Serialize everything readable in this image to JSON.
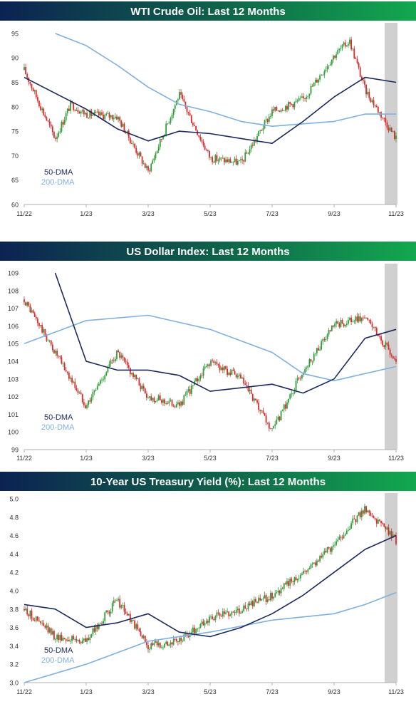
{
  "colors": {
    "header_left": "#0c2352",
    "header_mid": "#0f5f4a",
    "header_right": "#12a84f",
    "up_candle": "#2f9e3a",
    "down_candle": "#d92b2b",
    "dma50": "#1a2a5c",
    "dma200": "#7fb0e0",
    "highlight": "#d0d0d0"
  },
  "chart_data": [
    {
      "type": "candlestick",
      "title": "WTI Crude Oil: Last 12 Months",
      "x_ticks": [
        "11/22",
        "1/23",
        "3/23",
        "5/23",
        "7/23",
        "9/23",
        "11/23"
      ],
      "ylim": [
        60,
        96
      ],
      "y_ticks": [
        "60",
        "65",
        "70",
        "75",
        "80",
        "85",
        "90",
        "95"
      ],
      "legend": [
        "50-DMA",
        "200-DMA"
      ],
      "legend_position": "bottom-left",
      "highlight_last_days": 6,
      "close": [
        {
          "x": "11/22",
          "y": 87.5
        },
        {
          "x": "12/22",
          "y": 73.5
        },
        {
          "x": "12/22b",
          "y": 80.5
        },
        {
          "x": "1/23",
          "y": 78.5
        },
        {
          "x": "2/23",
          "y": 78.0
        },
        {
          "x": "3/23",
          "y": 66.7
        },
        {
          "x": "4/23",
          "y": 82.5
        },
        {
          "x": "5/23",
          "y": 69.5
        },
        {
          "x": "6/23",
          "y": 68.5
        },
        {
          "x": "7/23",
          "y": 79.0
        },
        {
          "x": "8/23",
          "y": 81.5
        },
        {
          "x": "9/23",
          "y": 90.5
        },
        {
          "x": "9/23b",
          "y": 93.5
        },
        {
          "x": "10/23",
          "y": 83.5
        },
        {
          "x": "11/23",
          "y": 73.5
        }
      ],
      "dma50": [
        {
          "x": "11/22",
          "y": 86.0
        },
        {
          "x": "1/23",
          "y": 79.5
        },
        {
          "x": "2/23",
          "y": 75.5
        },
        {
          "x": "3/23",
          "y": 73.0
        },
        {
          "x": "4/23",
          "y": 75.0
        },
        {
          "x": "5/23",
          "y": 74.5
        },
        {
          "x": "6/23",
          "y": 73.5
        },
        {
          "x": "7/23",
          "y": 72.5
        },
        {
          "x": "8/23",
          "y": 77.0
        },
        {
          "x": "9/23",
          "y": 82.0
        },
        {
          "x": "10/23",
          "y": 86.0
        },
        {
          "x": "11/23",
          "y": 85.0
        }
      ],
      "dma200": [
        {
          "x": "12/22",
          "y": 95.0
        },
        {
          "x": "1/23",
          "y": 92.5
        },
        {
          "x": "2/23",
          "y": 88.5
        },
        {
          "x": "3/23",
          "y": 84.0
        },
        {
          "x": "4/23",
          "y": 80.5
        },
        {
          "x": "5/23",
          "y": 79.0
        },
        {
          "x": "6/23",
          "y": 77.0
        },
        {
          "x": "7/23",
          "y": 76.0
        },
        {
          "x": "8/23",
          "y": 76.5
        },
        {
          "x": "9/23",
          "y": 77.0
        },
        {
          "x": "10/23",
          "y": 78.5
        },
        {
          "x": "11/23",
          "y": 78.5
        }
      ]
    },
    {
      "type": "candlestick",
      "title": "US Dollar Index: Last 12 Months",
      "x_ticks": [
        "11/22",
        "1/23",
        "3/23",
        "5/23",
        "7/23",
        "9/23",
        "11/23"
      ],
      "ylim": [
        99,
        109.2
      ],
      "y_ticks": [
        "99",
        "100",
        "101",
        "102",
        "103",
        "104",
        "105",
        "106",
        "107",
        "108",
        "109"
      ],
      "legend": [
        "50-DMA",
        "200-DMA"
      ],
      "legend_position": "bottom-left",
      "highlight_last_days": 6,
      "close": [
        {
          "x": "11/22",
          "y": 107.5
        },
        {
          "x": "12/22",
          "y": 104.5
        },
        {
          "x": "1/23",
          "y": 101.5
        },
        {
          "x": "2/23",
          "y": 104.5
        },
        {
          "x": "3/23",
          "y": 102.0
        },
        {
          "x": "4/23",
          "y": 101.5
        },
        {
          "x": "5/23",
          "y": 104.0
        },
        {
          "x": "6/23",
          "y": 103.0
        },
        {
          "x": "7/23",
          "y": 100.0
        },
        {
          "x": "8/23",
          "y": 103.5
        },
        {
          "x": "9/23",
          "y": 106.0
        },
        {
          "x": "10/23",
          "y": 106.5
        },
        {
          "x": "11/23",
          "y": 104.0
        }
      ],
      "dma50": [
        {
          "x": "12/22",
          "y": 109.0
        },
        {
          "x": "1/23",
          "y": 104.0
        },
        {
          "x": "2/23",
          "y": 103.5
        },
        {
          "x": "3/23",
          "y": 103.5
        },
        {
          "x": "4/23",
          "y": 103.2
        },
        {
          "x": "5/23",
          "y": 102.3
        },
        {
          "x": "6/23",
          "y": 102.5
        },
        {
          "x": "7/23",
          "y": 102.7
        },
        {
          "x": "8/23",
          "y": 102.2
        },
        {
          "x": "9/23",
          "y": 103.0
        },
        {
          "x": "10/23",
          "y": 105.3
        },
        {
          "x": "11/23",
          "y": 105.8
        }
      ],
      "dma200": [
        {
          "x": "11/22",
          "y": 105.0
        },
        {
          "x": "1/23",
          "y": 106.3
        },
        {
          "x": "3/23",
          "y": 106.6
        },
        {
          "x": "5/23",
          "y": 105.8
        },
        {
          "x": "7/23",
          "y": 104.5
        },
        {
          "x": "8/23",
          "y": 103.3
        },
        {
          "x": "9/23",
          "y": 102.9
        },
        {
          "x": "10/23",
          "y": 103.3
        },
        {
          "x": "11/23",
          "y": 103.7
        }
      ]
    },
    {
      "type": "candlestick",
      "title": "10-Year US Treasury Yield (%): Last 12 Months",
      "x_ticks": [
        "11/22",
        "1/23",
        "3/23",
        "5/23",
        "7/23",
        "9/23",
        "11/23"
      ],
      "ylim": [
        3.0,
        5.0
      ],
      "y_ticks": [
        "3.0",
        "3.2",
        "3.4",
        "3.6",
        "3.8",
        "4.0",
        "4.2",
        "4.4",
        "4.6",
        "4.8",
        "5.0"
      ],
      "legend": [
        "50-DMA",
        "200-DMA"
      ],
      "legend_position": "bottom-left",
      "highlight_last_days": 6,
      "close": [
        {
          "x": "11/22",
          "y": 3.8
        },
        {
          "x": "12/22",
          "y": 3.5
        },
        {
          "x": "1/23",
          "y": 3.45
        },
        {
          "x": "2/23",
          "y": 3.9
        },
        {
          "x": "3/23",
          "y": 3.4
        },
        {
          "x": "4/23",
          "y": 3.45
        },
        {
          "x": "5/23",
          "y": 3.7
        },
        {
          "x": "6/23",
          "y": 3.8
        },
        {
          "x": "7/23",
          "y": 3.95
        },
        {
          "x": "8/23",
          "y": 4.2
        },
        {
          "x": "9/23",
          "y": 4.5
        },
        {
          "x": "10/23",
          "y": 4.9
        },
        {
          "x": "11/23",
          "y": 4.55
        }
      ],
      "dma50": [
        {
          "x": "11/22",
          "y": 3.85
        },
        {
          "x": "12/22",
          "y": 3.8
        },
        {
          "x": "1/23",
          "y": 3.6
        },
        {
          "x": "2/23",
          "y": 3.65
        },
        {
          "x": "3/23",
          "y": 3.75
        },
        {
          "x": "4/23",
          "y": 3.55
        },
        {
          "x": "5/23",
          "y": 3.5
        },
        {
          "x": "6/23",
          "y": 3.6
        },
        {
          "x": "7/23",
          "y": 3.75
        },
        {
          "x": "8/23",
          "y": 3.95
        },
        {
          "x": "9/23",
          "y": 4.2
        },
        {
          "x": "10/23",
          "y": 4.45
        },
        {
          "x": "11/23",
          "y": 4.6
        }
      ],
      "dma200": [
        {
          "x": "11/22",
          "y": 3.0
        },
        {
          "x": "1/23",
          "y": 3.2
        },
        {
          "x": "3/23",
          "y": 3.45
        },
        {
          "x": "5/23",
          "y": 3.55
        },
        {
          "x": "7/23",
          "y": 3.68
        },
        {
          "x": "9/23",
          "y": 3.75
        },
        {
          "x": "10/23",
          "y": 3.85
        },
        {
          "x": "11/23",
          "y": 3.98
        }
      ]
    }
  ]
}
